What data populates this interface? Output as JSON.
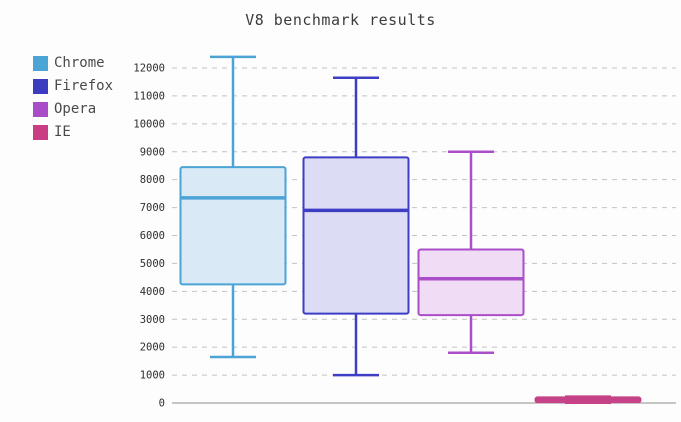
{
  "title": "V8 benchmark results",
  "legend": [
    {
      "label": "Chrome",
      "color": "#4aa5d6"
    },
    {
      "label": "Firefox",
      "color": "#3c3cc0"
    },
    {
      "label": "Opera",
      "color": "#a84cc8"
    },
    {
      "label": "IE",
      "color": "#c93d85"
    }
  ],
  "chart_data": {
    "type": "boxplot",
    "title": "V8 benchmark results",
    "xlabel": "",
    "ylabel": "",
    "ylim": [
      0,
      12400
    ],
    "yticks": [
      0,
      1000,
      2000,
      3000,
      4000,
      5000,
      6000,
      7000,
      8000,
      9000,
      10000,
      11000,
      12000
    ],
    "grid": "horizontal-dashed",
    "legend_position": "top-left",
    "series": [
      {
        "name": "Chrome",
        "low": 1650,
        "q1": 4250,
        "median": 7350,
        "q3": 8450,
        "high": 12400,
        "stroke": "#4da3d6",
        "fill": "#d9eaf6"
      },
      {
        "name": "Firefox",
        "low": 1000,
        "q1": 3200,
        "median": 6900,
        "q3": 8800,
        "high": 11650,
        "stroke": "#3e3ec4",
        "fill": "#dcdcf4"
      },
      {
        "name": "Opera",
        "low": 1800,
        "q1": 3150,
        "median": 4450,
        "q3": 5500,
        "high": 9000,
        "stroke": "#aa4ec9",
        "fill": "#f0dcf4"
      },
      {
        "name": "IE",
        "low": 10,
        "q1": 30,
        "median": 120,
        "q3": 200,
        "high": 230,
        "stroke": "#c64286",
        "fill": "#eba9cc"
      }
    ]
  }
}
